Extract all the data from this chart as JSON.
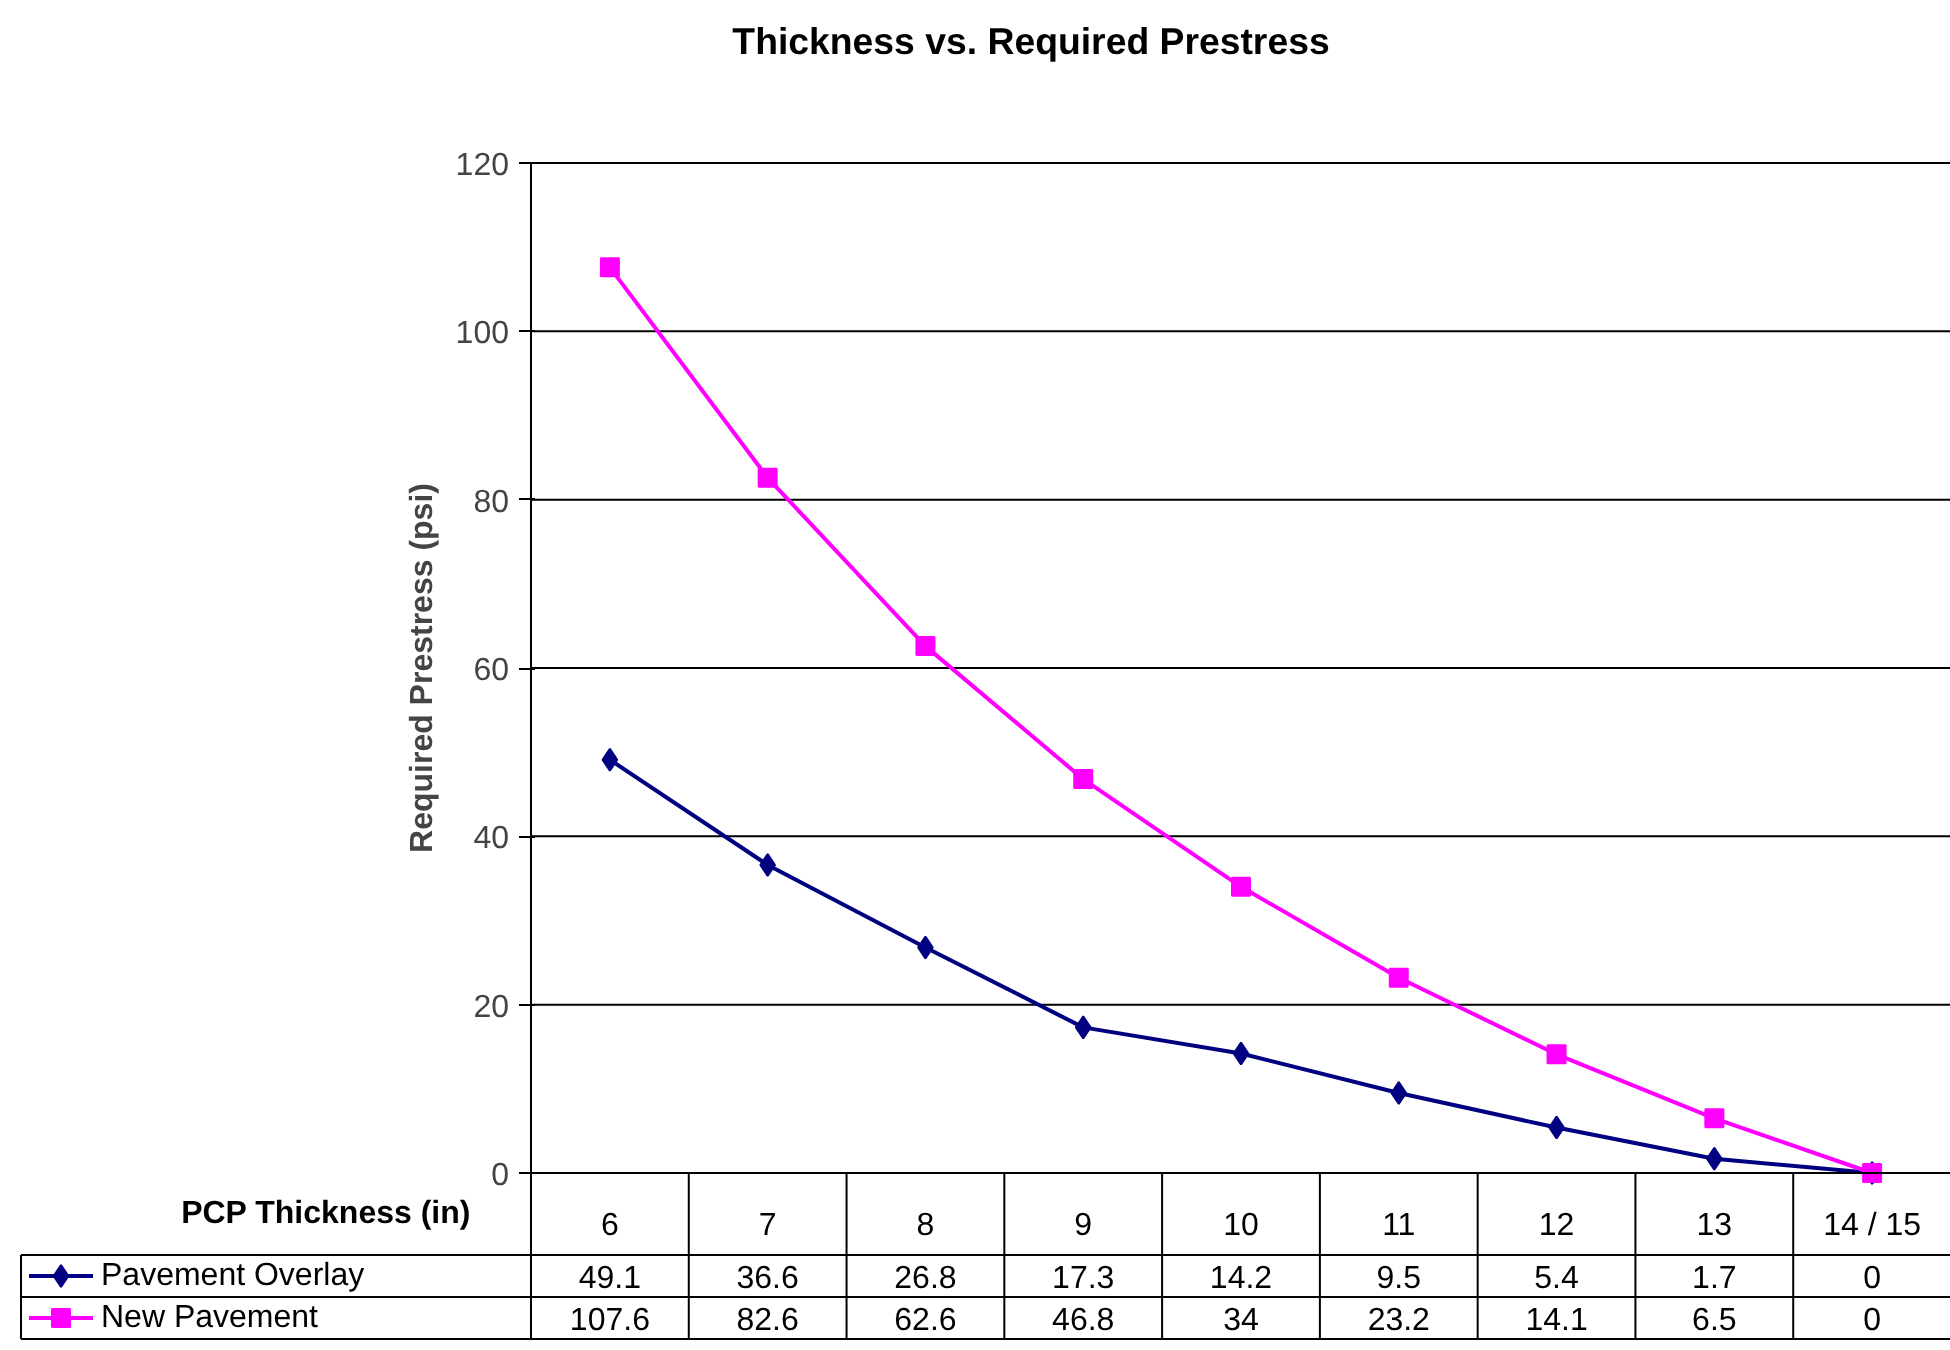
{
  "chart_data": {
    "type": "line",
    "title": "Thickness vs. Required Prestress",
    "xlabel": "PCP Thickness (in)",
    "ylabel": "Required Prestress (psi)",
    "categories": [
      "6",
      "7",
      "8",
      "9",
      "10",
      "11",
      "12",
      "13",
      "14 / 15"
    ],
    "series": [
      {
        "name": "Pavement Overlay",
        "color": "#000080",
        "marker": "diamond",
        "values": [
          49.1,
          36.6,
          26.8,
          17.3,
          14.2,
          9.5,
          5.4,
          1.7,
          0
        ]
      },
      {
        "name": "New Pavement",
        "color": "#ff00ff",
        "marker": "square",
        "values": [
          107.6,
          82.6,
          62.6,
          46.8,
          34,
          23.2,
          14.1,
          6.5,
          0
        ]
      }
    ],
    "ylim": [
      0,
      120
    ],
    "yticks": [
      0,
      20,
      40,
      60,
      80,
      100,
      120
    ],
    "grid": "y",
    "legend": "bottom",
    "data_labels": true
  }
}
